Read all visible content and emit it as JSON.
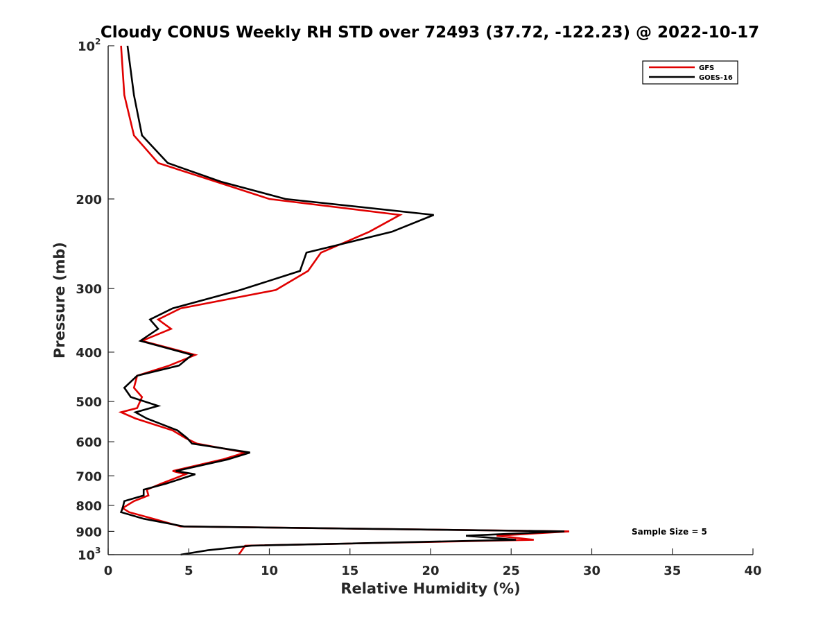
{
  "chart_data": {
    "type": "line",
    "title": "Cloudy CONUS Weekly RH STD over 72493 (37.72, -122.23) @ 2022-10-17",
    "xlabel": "Relative Humidity (%)",
    "ylabel": "Pressure (mb)",
    "xlim": [
      0,
      40
    ],
    "ylim": [
      100,
      1000
    ],
    "y_scale": "log",
    "y_reversed": true,
    "grid": false,
    "x_ticks": [
      "0",
      "5",
      "10",
      "15",
      "20",
      "25",
      "30",
      "35",
      "40"
    ],
    "y_ticks": [
      {
        "value": 100,
        "label": "10",
        "sup": "2"
      },
      {
        "value": 200,
        "label": "200"
      },
      {
        "value": 300,
        "label": "300"
      },
      {
        "value": 400,
        "label": "400"
      },
      {
        "value": 500,
        "label": "500"
      },
      {
        "value": 600,
        "label": "600"
      },
      {
        "value": 700,
        "label": "700"
      },
      {
        "value": 800,
        "label": "800"
      },
      {
        "value": 900,
        "label": "900"
      },
      {
        "value": 1000,
        "label": "10",
        "sup": "3"
      }
    ],
    "legend_position": "top-right",
    "annotation": "Sample Size = 5",
    "series": [
      {
        "name": "GFS",
        "color": "#e00000",
        "points": [
          [
            0.8,
            100
          ],
          [
            1.0,
            125
          ],
          [
            1.6,
            150
          ],
          [
            3.1,
            170
          ],
          [
            6.7,
            185
          ],
          [
            10.0,
            200
          ],
          [
            18.1,
            215
          ],
          [
            16.2,
            232
          ],
          [
            13.2,
            255
          ],
          [
            12.4,
            277
          ],
          [
            10.4,
            302
          ],
          [
            4.5,
            328
          ],
          [
            3.1,
            345
          ],
          [
            3.9,
            360
          ],
          [
            2.1,
            380
          ],
          [
            5.4,
            405
          ],
          [
            3.8,
            425
          ],
          [
            1.8,
            445
          ],
          [
            1.6,
            470
          ],
          [
            2.1,
            490
          ],
          [
            1.8,
            515
          ],
          [
            0.8,
            525
          ],
          [
            1.7,
            540
          ],
          [
            4.0,
            570
          ],
          [
            4.8,
            590
          ],
          [
            5.5,
            605
          ],
          [
            8.5,
            630
          ],
          [
            7.1,
            650
          ],
          [
            4.0,
            685
          ],
          [
            4.8,
            695
          ],
          [
            3.3,
            725
          ],
          [
            2.4,
            745
          ],
          [
            2.5,
            765
          ],
          [
            1.6,
            785
          ],
          [
            0.9,
            810
          ],
          [
            1.3,
            825
          ],
          [
            2.8,
            850
          ],
          [
            4.5,
            880
          ],
          [
            28.6,
            900
          ],
          [
            24.1,
            918
          ],
          [
            26.4,
            935
          ],
          [
            8.5,
            960
          ],
          [
            8.1,
            1000
          ]
        ]
      },
      {
        "name": "GOES-16",
        "color": "#000000",
        "points": [
          [
            1.2,
            100
          ],
          [
            1.6,
            125
          ],
          [
            2.1,
            150
          ],
          [
            3.7,
            170
          ],
          [
            7.0,
            185
          ],
          [
            11.0,
            200
          ],
          [
            20.2,
            215
          ],
          [
            17.6,
            232
          ],
          [
            12.3,
            255
          ],
          [
            11.9,
            277
          ],
          [
            8.2,
            302
          ],
          [
            4.0,
            328
          ],
          [
            2.6,
            345
          ],
          [
            3.1,
            360
          ],
          [
            2.0,
            380
          ],
          [
            5.2,
            405
          ],
          [
            4.4,
            425
          ],
          [
            1.8,
            445
          ],
          [
            1.0,
            470
          ],
          [
            1.4,
            490
          ],
          [
            3.1,
            510
          ],
          [
            1.7,
            525
          ],
          [
            2.4,
            540
          ],
          [
            4.3,
            570
          ],
          [
            4.9,
            590
          ],
          [
            5.2,
            605
          ],
          [
            8.8,
            630
          ],
          [
            7.4,
            650
          ],
          [
            4.2,
            685
          ],
          [
            5.4,
            695
          ],
          [
            3.6,
            725
          ],
          [
            2.2,
            745
          ],
          [
            2.2,
            765
          ],
          [
            1.0,
            785
          ],
          [
            0.9,
            810
          ],
          [
            0.8,
            825
          ],
          [
            2.2,
            850
          ],
          [
            4.7,
            880
          ],
          [
            28.3,
            900
          ],
          [
            22.2,
            918
          ],
          [
            25.3,
            935
          ],
          [
            8.9,
            960
          ],
          [
            6.2,
            980
          ],
          [
            4.5,
            1000
          ]
        ]
      }
    ]
  }
}
